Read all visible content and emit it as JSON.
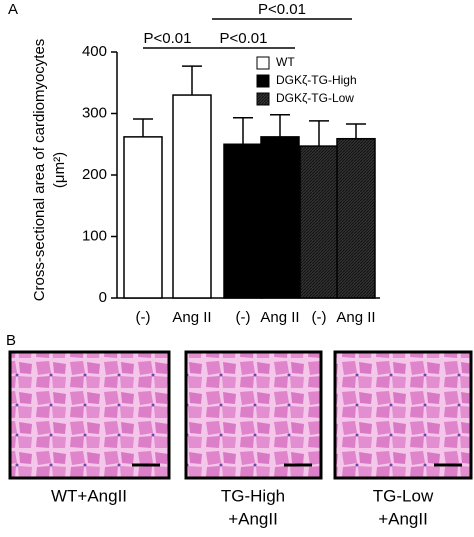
{
  "panel_labels": [
    "A",
    "B"
  ],
  "chart_data": {
    "type": "bar",
    "ylabel": [
      "Cross-sectional area of cardiomyocytes",
      "(μm²)"
    ],
    "categories": [
      "(-)",
      "Ang II",
      "(-)",
      "Ang II",
      "(-)",
      "Ang II"
    ],
    "series": [
      {
        "name": "WT",
        "color": "#ffffff",
        "values": [
          262,
          330,
          null,
          null,
          null,
          null
        ],
        "errors": [
          29,
          47,
          null,
          null,
          null,
          null
        ]
      },
      {
        "name": "DGKζ-TG-High",
        "color": "#000000",
        "values": [
          null,
          null,
          250,
          262,
          null,
          null
        ],
        "errors": [
          null,
          null,
          43,
          36,
          null,
          null
        ]
      },
      {
        "name": "DGKζ-TG-Low",
        "color": "#333333",
        "values": [
          null,
          null,
          null,
          null,
          247,
          259
        ],
        "errors": [
          null,
          null,
          null,
          null,
          41,
          24
        ]
      }
    ],
    "ylim": [
      0,
      400
    ],
    "yticks": [
      0,
      100,
      200,
      300,
      400
    ],
    "annotations": [
      "P<0.01",
      "P<0.01",
      "P<0.01"
    ]
  },
  "images": [
    {
      "caption": [
        "WT+AngII"
      ]
    },
    {
      "caption": [
        "TG-High",
        "+AngII"
      ]
    },
    {
      "caption": [
        "TG-Low",
        "+AngII"
      ]
    }
  ]
}
